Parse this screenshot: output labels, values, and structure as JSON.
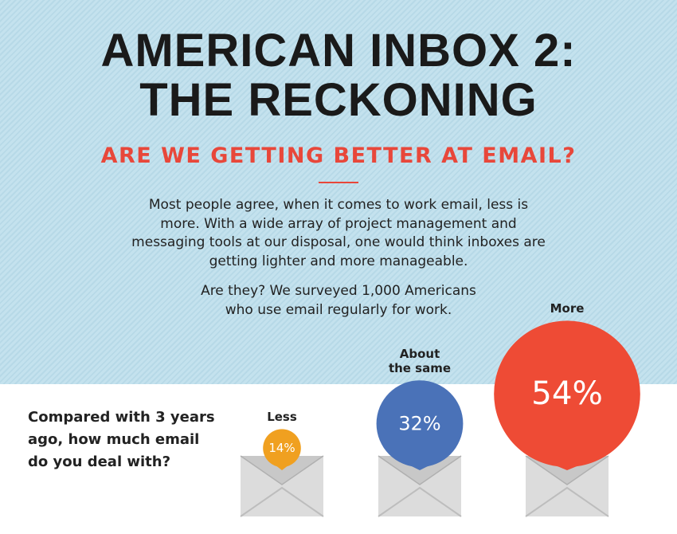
{
  "header": {
    "title_lines": [
      "AMERICAN INBOX 2:",
      "THE RECKONING"
    ],
    "subtitle": "ARE WE GETTING BETTER AT EMAIL?",
    "paragraphs": [
      "Most people agree, when it comes to work email, less is more. With a wide array of project management and messaging tools at our disposal, one would think inboxes are getting lighter and more manageable.",
      "Are they? We surveyed 1,000 Americans who use email regularly for work."
    ]
  },
  "chart_data": {
    "type": "bubble",
    "title": "Compared with 3 years ago, how much email do you deal with?",
    "categories": [
      "Less",
      "About the same",
      "More"
    ],
    "values": [
      14,
      32,
      54
    ],
    "value_labels": [
      "14%",
      "32%",
      "54%"
    ],
    "colors": [
      "#f0a020",
      "#4a72b8",
      "#ee4b35"
    ]
  }
}
